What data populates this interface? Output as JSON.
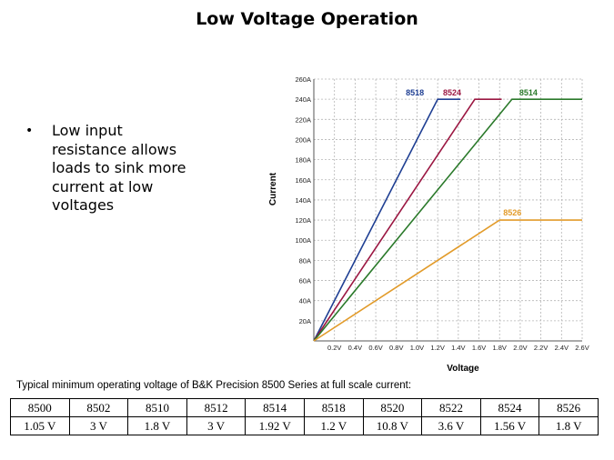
{
  "title": "Low Voltage Operation",
  "bullet": {
    "symbol": "•",
    "text": "Low input resistance allows loads to sink more current at low voltages"
  },
  "chart_data": {
    "type": "line",
    "xlabel": "Voltage",
    "ylabel": "Current",
    "xlim": [
      0,
      2.6
    ],
    "ylim": [
      0,
      260
    ],
    "x_ticks": [
      "0.2V",
      "0.4V",
      "0.6V",
      "0.8V",
      "1.0V",
      "1.2V",
      "1.4V",
      "1.6V",
      "1.8V",
      "2.0V",
      "2.2V",
      "2.4V",
      "2.6V"
    ],
    "y_ticks": [
      "20A",
      "40A",
      "60A",
      "80A",
      "100A",
      "120A",
      "140A",
      "160A",
      "180A",
      "200A",
      "220A",
      "240A",
      "260A"
    ],
    "grid": true,
    "series": [
      {
        "name": "8518",
        "color": "#1f3f93",
        "x": [
          0,
          1.2,
          1.42
        ],
        "y": [
          0,
          240,
          240
        ]
      },
      {
        "name": "8524",
        "color": "#9b1742",
        "x": [
          0,
          1.56,
          1.82
        ],
        "y": [
          0,
          240,
          240
        ]
      },
      {
        "name": "8514",
        "color": "#2b7a2b",
        "x": [
          0,
          1.92,
          2.6
        ],
        "y": [
          0,
          240,
          240
        ]
      },
      {
        "name": "8526",
        "color": "#e29b2a",
        "x": [
          0,
          1.8,
          2.6
        ],
        "y": [
          0,
          120,
          120
        ]
      }
    ]
  },
  "caption": "Typical minimum operating voltage of B&K Precision 8500 Series at full scale current:",
  "table": {
    "models": [
      "8500",
      "8502",
      "8510",
      "8512",
      "8514",
      "8518",
      "8520",
      "8522",
      "8524",
      "8526"
    ],
    "voltages": [
      "1.05 V",
      "3 V",
      "1.8 V",
      "3 V",
      "1.92 V",
      "1.2 V",
      "10.8 V",
      "3.6 V",
      "1.56 V",
      "1.8 V"
    ]
  }
}
